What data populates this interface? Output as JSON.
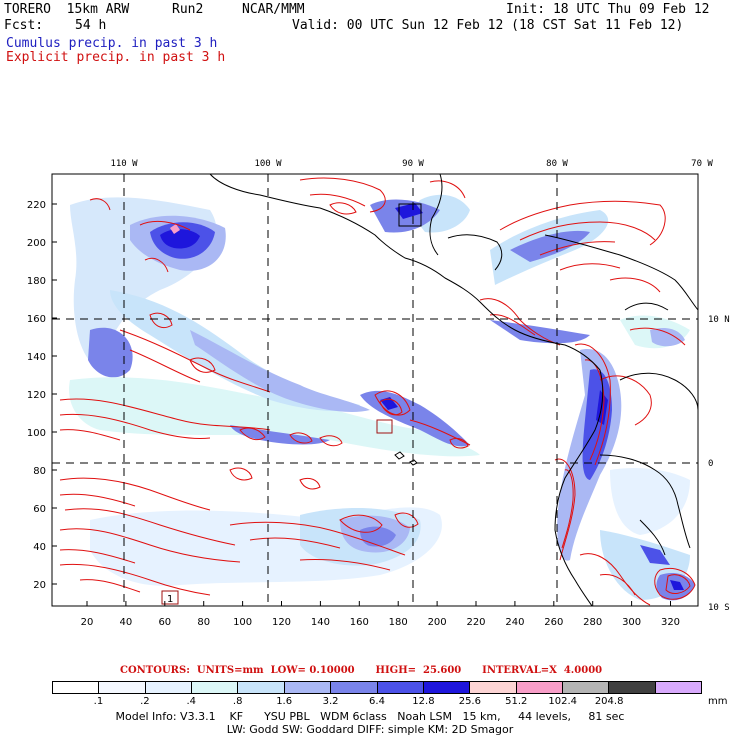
{
  "header": {
    "model": "TORERO  15km ARW",
    "run": "Run2",
    "org": "NCAR/MMM",
    "init": "Init: 18 UTC Thu 09 Feb 12",
    "fcst_label": "Fcst:",
    "fcst_value": "54 h",
    "valid": "Valid: 00 UTC Sun 12 Feb 12 (18 CST Sat 11 Feb 12)",
    "cumulus": "Cumulus precip. in past 3 h",
    "explicit": "Explicit precip. in past 3 h"
  },
  "map": {
    "lon_labels": [
      "110 W",
      "100 W",
      "90 W",
      "80 W",
      "70 W"
    ],
    "lat_labels": [
      "10 N",
      "0",
      "10 S"
    ],
    "y_ticks": [
      "220",
      "200",
      "180",
      "160",
      "140",
      "120",
      "100",
      "80",
      "60",
      "40",
      "20"
    ],
    "x_ticks": [
      "20",
      "40",
      "60",
      "80",
      "100",
      "120",
      "140",
      "160",
      "180",
      "200",
      "220",
      "240",
      "260",
      "280",
      "300",
      "320"
    ],
    "box_label": "1",
    "colors": {
      "coast": "#000000",
      "contour": "#e01010",
      "grid": "#000000"
    }
  },
  "contours": {
    "label": "CONTOURS:  UNITS=mm  LOW= 0.10000      HIGH=  25.600      INTERVAL=X  4.0000"
  },
  "colorbar": {
    "labels": [
      ".1",
      ".2",
      ".4",
      ".8",
      "1.6",
      "3.2",
      "6.4",
      "12.8",
      "25.6",
      "51.2",
      "102.4",
      "204.8"
    ],
    "unit": "mm",
    "colors": [
      "#ffffff",
      "#f4f8ff",
      "#e6f2ff",
      "#dcf7f7",
      "#c8e4fa",
      "#aab8f4",
      "#7a84ea",
      "#4c52e8",
      "#1e16dc",
      "#fcd4d4",
      "#f89ec8",
      "#b4b4b4",
      "#404040",
      "#d8aafc"
    ]
  },
  "footer": {
    "line1": "Model Info: V3.3.1    KF      YSU PBL   WDM 6class   Noah LSM   15 km,     44 levels,     81 sec",
    "line2": "LW: Godd SW: Goddard DIFF: simple KM: 2D Smagor"
  }
}
